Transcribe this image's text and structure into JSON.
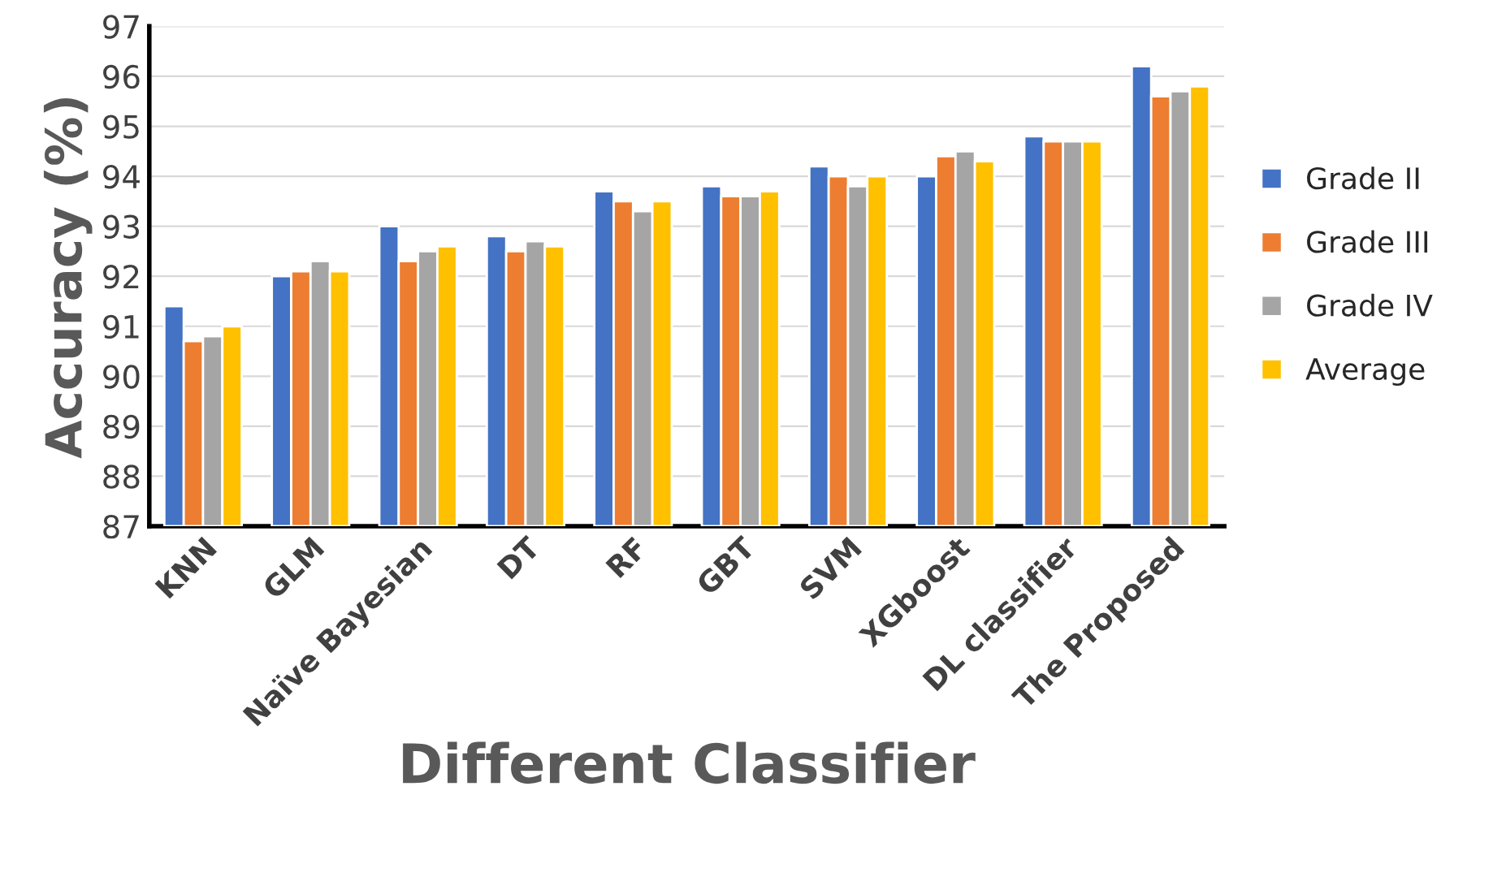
{
  "chart_data": {
    "type": "bar",
    "xlabel": "Different Classifier",
    "ylabel": "Accuracy (%)",
    "categories": [
      "KNN",
      "GLM",
      "Naïve Bayesian",
      "DT",
      "RF",
      "GBT",
      "SVM",
      "XGboost",
      "DL classifier",
      "The Proposed"
    ],
    "series": [
      {
        "name": "Grade II",
        "color": "#4472c4",
        "values": [
          91.4,
          92.0,
          93.0,
          92.8,
          93.7,
          93.8,
          94.2,
          94.0,
          94.8,
          96.2
        ]
      },
      {
        "name": "Grade III",
        "color": "#ed7d31",
        "values": [
          90.7,
          92.1,
          92.3,
          92.5,
          93.5,
          93.6,
          94.0,
          94.4,
          94.7,
          95.6
        ]
      },
      {
        "name": "Grade IV",
        "color": "#a5a5a5",
        "values": [
          90.8,
          92.3,
          92.5,
          92.7,
          93.3,
          93.6,
          93.8,
          94.5,
          94.7,
          95.7
        ]
      },
      {
        "name": "Average",
        "color": "#ffc000",
        "values": [
          91.0,
          92.1,
          92.6,
          92.6,
          93.5,
          93.7,
          94.0,
          94.3,
          94.7,
          95.8
        ]
      }
    ],
    "ylim": [
      87,
      97
    ],
    "yticks": [
      87,
      88,
      89,
      90,
      91,
      92,
      93,
      94,
      95,
      96,
      97
    ],
    "grid": "y",
    "legend": "right"
  }
}
